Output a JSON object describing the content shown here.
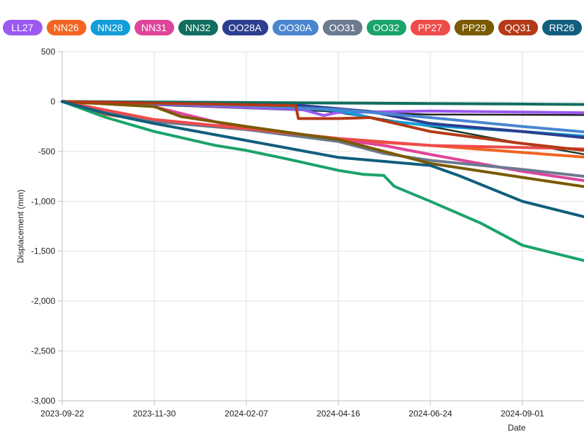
{
  "chart_data": {
    "type": "line",
    "title": "",
    "xlabel": "Date",
    "ylabel": "Displacement (mm)",
    "ylim": [
      -3000,
      500
    ],
    "xlim": [
      "2023-09-22",
      "2024-10-31"
    ],
    "y_ticks": [
      "500",
      "0",
      "-500",
      "-1,000",
      "-1,500",
      "-2,000",
      "-2,500",
      "-3,000"
    ],
    "x_ticks": [
      "2023-09-22",
      "2023-11-30",
      "2024-02-07",
      "2024-04-16",
      "2024-06-24",
      "2024-09-01"
    ],
    "grid": true,
    "legend_position": "top",
    "series": [
      {
        "name": "LL27",
        "color": "#9b59f2",
        "points": [
          [
            "2023-09-22",
            0
          ],
          [
            "2023-10-20",
            -10
          ],
          [
            "2023-12-15",
            -30
          ],
          [
            "2024-03-20",
            -80
          ],
          [
            "2024-04-05",
            -140
          ],
          [
            "2024-04-15",
            -110
          ],
          [
            "2024-06-24",
            -95
          ],
          [
            "2024-09-01",
            -105
          ],
          [
            "2024-10-31",
            -115
          ]
        ]
      },
      {
        "name": "NN26",
        "color": "#f26522",
        "points": [
          [
            "2023-09-22",
            0
          ],
          [
            "2023-10-20",
            -120
          ],
          [
            "2023-11-30",
            -200
          ],
          [
            "2024-02-07",
            -280
          ],
          [
            "2024-04-16",
            -380
          ],
          [
            "2024-06-24",
            -440
          ],
          [
            "2024-09-01",
            -510
          ],
          [
            "2024-10-31",
            -570
          ]
        ]
      },
      {
        "name": "NN28",
        "color": "#129dd9",
        "points": [
          [
            "2023-09-22",
            0
          ],
          [
            "2024-02-07",
            -30
          ],
          [
            "2024-04-16",
            -90
          ],
          [
            "2024-05-20",
            -190
          ],
          [
            "2024-06-24",
            -240
          ],
          [
            "2024-09-01",
            -300
          ],
          [
            "2024-10-31",
            -360
          ]
        ]
      },
      {
        "name": "NN31",
        "color": "#e0449a",
        "points": [
          [
            "2023-09-22",
            0
          ],
          [
            "2023-11-20",
            -20
          ],
          [
            "2024-02-07",
            -280
          ],
          [
            "2024-04-16",
            -380
          ],
          [
            "2024-05-20",
            -440
          ],
          [
            "2024-06-24",
            -530
          ],
          [
            "2024-09-01",
            -700
          ],
          [
            "2024-10-31",
            -820
          ]
        ]
      },
      {
        "name": "NN32",
        "color": "#0f6e5e",
        "points": [
          [
            "2023-09-22",
            0
          ],
          [
            "2023-12-01",
            -5
          ],
          [
            "2024-04-16",
            -15
          ],
          [
            "2024-06-24",
            -20
          ],
          [
            "2024-09-01",
            -25
          ],
          [
            "2024-10-31",
            -30
          ]
        ]
      },
      {
        "name": "OO28A",
        "color": "#2c3e8f",
        "points": [
          [
            "2023-09-22",
            0
          ],
          [
            "2024-03-20",
            -40
          ],
          [
            "2024-05-10",
            -100
          ],
          [
            "2024-06-24",
            -220
          ],
          [
            "2024-09-01",
            -300
          ],
          [
            "2024-10-31",
            -380
          ]
        ]
      },
      {
        "name": "OO30A",
        "color": "#4a86d0",
        "points": [
          [
            "2023-09-22",
            0
          ],
          [
            "2024-02-07",
            -40
          ],
          [
            "2024-04-16",
            -80
          ],
          [
            "2024-06-24",
            -160
          ],
          [
            "2024-09-01",
            -250
          ],
          [
            "2024-10-31",
            -320
          ]
        ]
      },
      {
        "name": "OO31",
        "color": "#6b7a8f",
        "points": [
          [
            "2023-09-22",
            0
          ],
          [
            "2023-11-30",
            -200
          ],
          [
            "2024-02-07",
            -280
          ],
          [
            "2024-04-16",
            -400
          ],
          [
            "2024-05-20",
            -520
          ],
          [
            "2024-06-24",
            -590
          ],
          [
            "2024-09-01",
            -680
          ],
          [
            "2024-10-31",
            -770
          ]
        ]
      },
      {
        "name": "OO32",
        "color": "#1aa36b",
        "points": [
          [
            "2023-09-22",
            0
          ],
          [
            "2023-10-25",
            -160
          ],
          [
            "2023-11-30",
            -300
          ],
          [
            "2024-01-15",
            -440
          ],
          [
            "2024-02-07",
            -490
          ],
          [
            "2024-03-10",
            -580
          ],
          [
            "2024-04-16",
            -690
          ],
          [
            "2024-05-05",
            -730
          ],
          [
            "2024-05-20",
            -740
          ],
          [
            "2024-05-28",
            -850
          ],
          [
            "2024-06-24",
            -1000
          ],
          [
            "2024-08-01",
            -1220
          ],
          [
            "2024-09-01",
            -1440
          ],
          [
            "2024-10-31",
            -1640
          ]
        ]
      },
      {
        "name": "PP27",
        "color": "#ee4b4b",
        "points": [
          [
            "2023-09-22",
            0
          ],
          [
            "2023-11-30",
            -180
          ],
          [
            "2024-02-07",
            -270
          ],
          [
            "2024-04-16",
            -370
          ],
          [
            "2024-06-24",
            -440
          ],
          [
            "2024-09-01",
            -460
          ],
          [
            "2024-10-31",
            -480
          ]
        ]
      },
      {
        "name": "PP29",
        "color": "#7a5a00",
        "points": [
          [
            "2023-09-22",
            0
          ],
          [
            "2023-11-30",
            -50
          ],
          [
            "2023-12-20",
            -150
          ],
          [
            "2024-02-07",
            -250
          ],
          [
            "2024-04-16",
            -380
          ],
          [
            "2024-06-24",
            -620
          ],
          [
            "2024-09-01",
            -760
          ],
          [
            "2024-10-31",
            -880
          ]
        ]
      },
      {
        "name": "QQ31",
        "color": "#b33a16",
        "points": [
          [
            "2023-09-22",
            0
          ],
          [
            "2024-03-15",
            -40
          ],
          [
            "2024-03-17",
            -170
          ],
          [
            "2024-04-16",
            -170
          ],
          [
            "2024-05-10",
            -160
          ],
          [
            "2024-06-24",
            -300
          ],
          [
            "2024-09-01",
            -420
          ],
          [
            "2024-10-31",
            -510
          ]
        ]
      },
      {
        "name": "RR26",
        "color": "#115e7d",
        "points": [
          [
            "2023-09-22",
            0
          ],
          [
            "2023-10-25",
            -120
          ],
          [
            "2023-11-30",
            -220
          ],
          [
            "2024-02-07",
            -390
          ],
          [
            "2024-04-16",
            -560
          ],
          [
            "2024-06-24",
            -640
          ],
          [
            "2024-07-15",
            -740
          ],
          [
            "2024-09-01",
            -1000
          ],
          [
            "2024-10-31",
            -1200
          ]
        ]
      },
      {
        "name": "",
        "color": "#1f3b2f",
        "points": [
          [
            "2023-09-22",
            0
          ],
          [
            "2024-03-01",
            -40
          ],
          [
            "2024-04-16",
            -110
          ],
          [
            "2024-06-24",
            -250
          ],
          [
            "2024-08-15",
            -380
          ],
          [
            "2024-10-31",
            -560
          ]
        ]
      },
      {
        "name": "",
        "color": "#222222",
        "points": [
          [
            "2023-09-22",
            0
          ],
          [
            "2024-04-16",
            -100
          ],
          [
            "2024-06-24",
            -130
          ],
          [
            "2024-10-31",
            -135
          ]
        ]
      }
    ]
  }
}
